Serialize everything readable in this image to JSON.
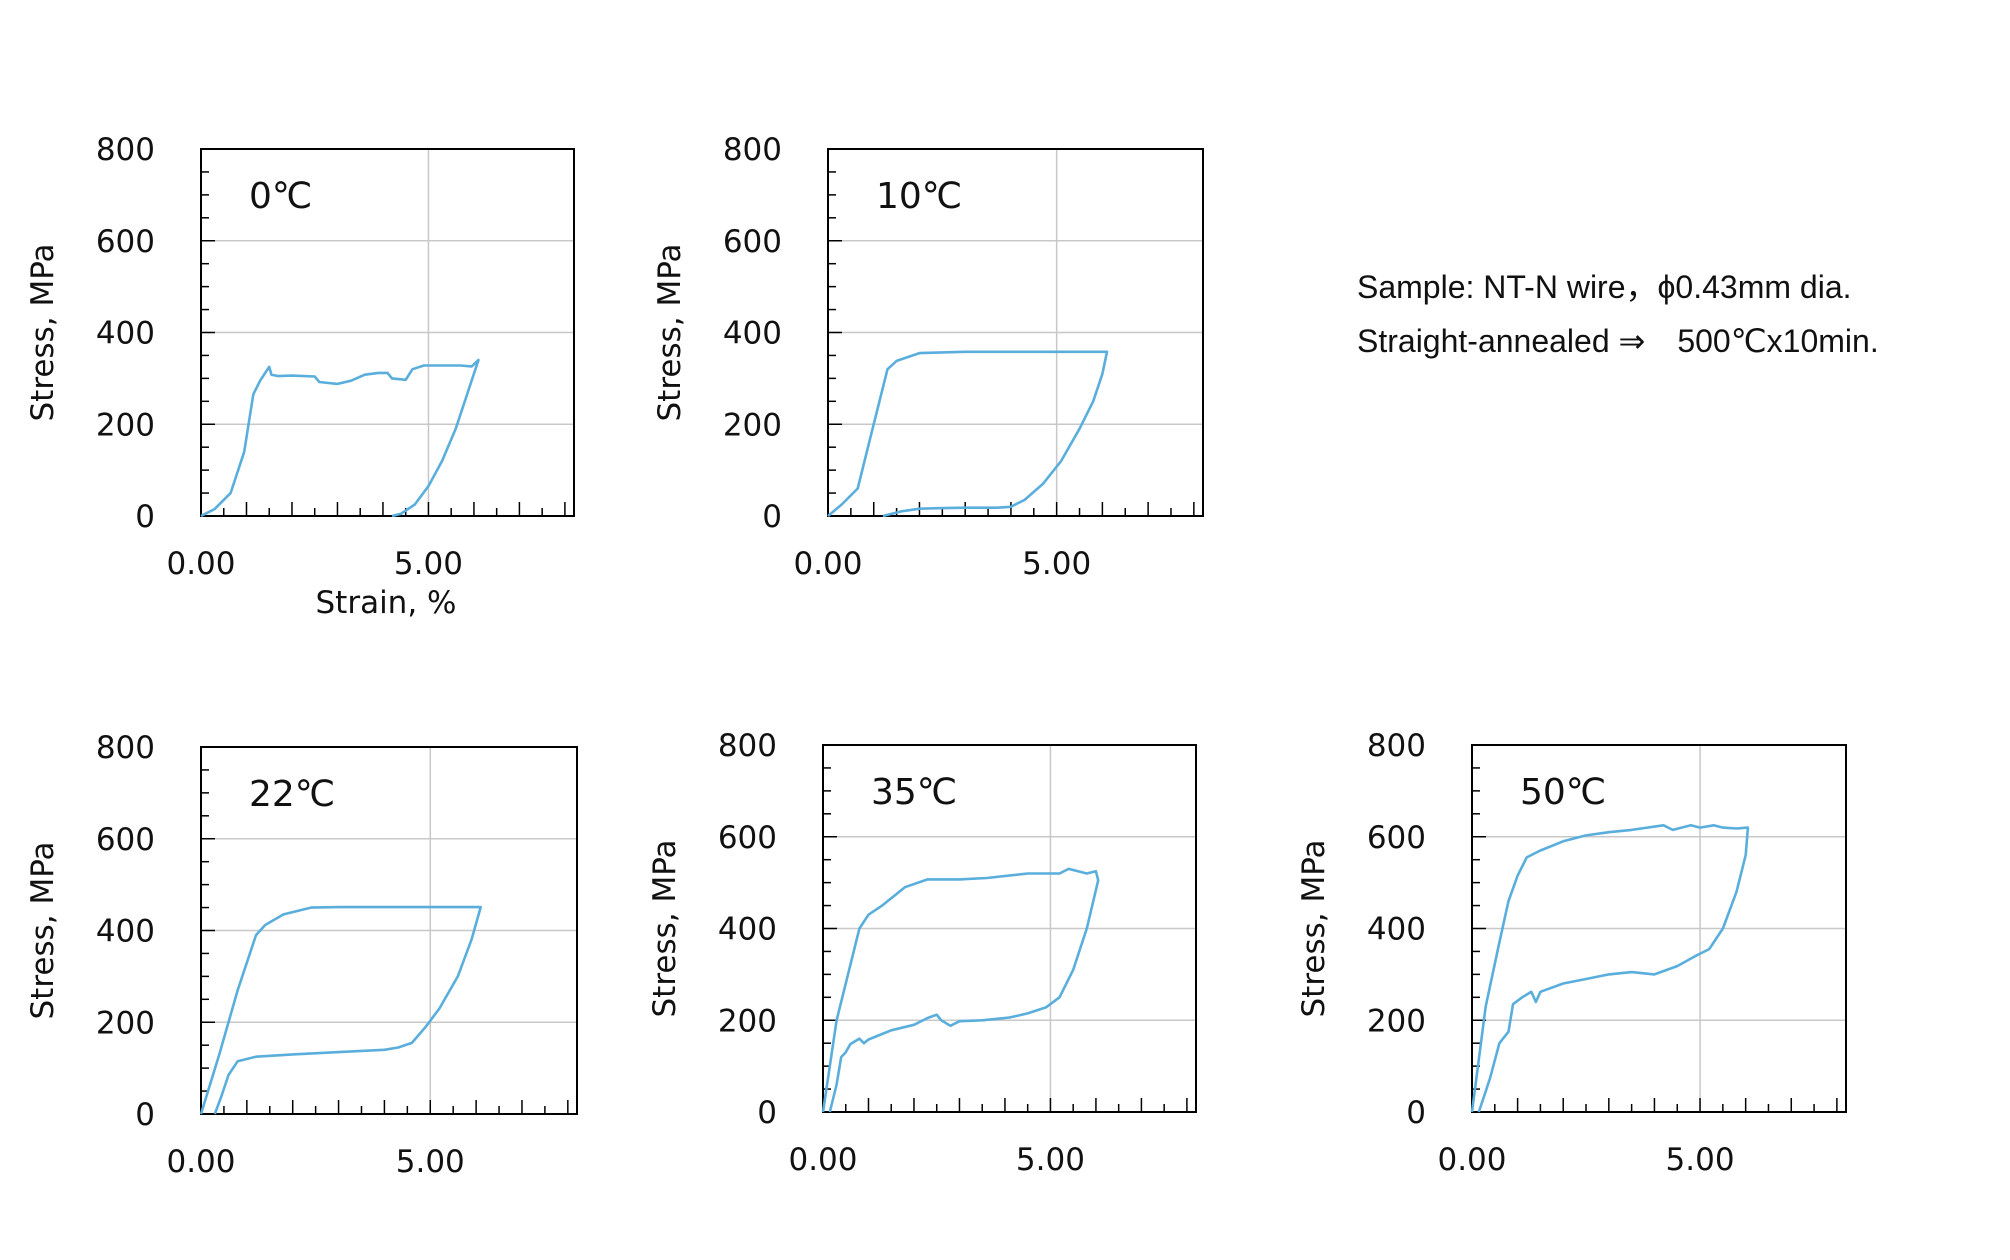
{
  "note": {
    "line1": "Sample: NT-N wire，ϕ0.43mm dia.",
    "line2": "Straight-annealed ⇒　500℃x10min."
  },
  "colors": {
    "curve": "#5aaedc",
    "frame": "#000000",
    "grid": "#c8c8c8"
  },
  "chart_data": [
    {
      "type": "line",
      "title": "0℃",
      "xlabel": "Strain, %",
      "ylabel": "Stress, MPa",
      "xlim": [
        0,
        8.2
      ],
      "ylim": [
        0,
        800
      ],
      "xticks": [
        "0.00",
        "5.00"
      ],
      "yticks": [
        "0",
        "200",
        "400",
        "600",
        "800"
      ],
      "grid": true,
      "series": [
        {
          "x": [
            0,
            0.3,
            0.65,
            0.95,
            1.15,
            1.3,
            1.5,
            1.55,
            1.7,
            2.0,
            2.5,
            2.6,
            2.8,
            3.0,
            3.3,
            3.6,
            3.9,
            4.1,
            4.2,
            4.5,
            4.65,
            4.9,
            5.2,
            5.7,
            5.95,
            6.1,
            6.0,
            5.8,
            5.6,
            5.3,
            5.0,
            4.7,
            4.4,
            4.2
          ],
          "y": [
            0,
            15,
            50,
            140,
            265,
            295,
            325,
            308,
            305,
            306,
            304,
            292,
            290,
            288,
            295,
            308,
            312,
            312,
            300,
            297,
            320,
            328,
            328,
            328,
            326,
            340,
            310,
            250,
            190,
            120,
            65,
            25,
            5,
            0
          ]
        }
      ]
    },
    {
      "type": "line",
      "title": "10℃",
      "xlabel": "",
      "ylabel": "Stress, MPa",
      "xlim": [
        0,
        8.2
      ],
      "ylim": [
        0,
        800
      ],
      "xticks": [
        "0.00",
        "5.00"
      ],
      "yticks": [
        "0",
        "200",
        "400",
        "600",
        "800"
      ],
      "grid": true,
      "series": [
        {
          "x": [
            0,
            0.3,
            0.65,
            0.95,
            1.2,
            1.3,
            1.5,
            2.0,
            3.0,
            4.0,
            5.0,
            5.9,
            6.1,
            6.0,
            5.8,
            5.5,
            5.1,
            4.7,
            4.3,
            4.0,
            3.7,
            3.0,
            2.4,
            2.0,
            1.6,
            1.2
          ],
          "y": [
            0,
            25,
            60,
            180,
            280,
            320,
            338,
            355,
            358,
            358,
            358,
            358,
            358,
            310,
            250,
            190,
            120,
            70,
            35,
            20,
            18,
            18,
            17,
            16,
            10,
            0
          ]
        }
      ]
    },
    {
      "type": "line",
      "title": "22℃",
      "xlabel": "",
      "ylabel": "Stress, MPa",
      "xlim": [
        0,
        8.2
      ],
      "ylim": [
        0,
        800
      ],
      "xticks": [
        "0.00",
        "5.00"
      ],
      "yticks": [
        "0",
        "200",
        "400",
        "600",
        "800"
      ],
      "grid": true,
      "series": [
        {
          "x": [
            0,
            0.4,
            0.8,
            1.2,
            1.4,
            1.8,
            2.4,
            3.0,
            4.0,
            5.0,
            5.9,
            6.1,
            5.9,
            5.6,
            5.2,
            4.9,
            4.6,
            4.3,
            4.0,
            3.0,
            2.0,
            1.2,
            0.8,
            0.6,
            0.45,
            0.3
          ],
          "y": [
            0,
            130,
            270,
            390,
            412,
            435,
            450,
            451,
            451,
            451,
            451,
            451,
            380,
            300,
            230,
            190,
            155,
            145,
            140,
            135,
            130,
            125,
            115,
            85,
            40,
            0
          ]
        }
      ]
    },
    {
      "type": "line",
      "title": "35℃",
      "xlabel": "",
      "ylabel": "Stress, MPa",
      "xlim": [
        0,
        8.2
      ],
      "ylim": [
        0,
        800
      ],
      "xticks": [
        "0.00",
        "5.00"
      ],
      "yticks": [
        "0",
        "200",
        "400",
        "600",
        "800"
      ],
      "grid": true,
      "series": [
        {
          "x": [
            0,
            0.3,
            0.55,
            0.8,
            1.0,
            1.3,
            1.8,
            2.3,
            3.0,
            3.6,
            4.5,
            5.2,
            5.4,
            5.8,
            6.0,
            6.05,
            5.8,
            5.5,
            5.2,
            4.9,
            4.5,
            4.1,
            3.5,
            3.0,
            2.8,
            2.6,
            2.5,
            2.3,
            2.0,
            1.5,
            1.0,
            0.9,
            0.8,
            0.6,
            0.5,
            0.4,
            0.3,
            0.15
          ],
          "y": [
            0,
            200,
            300,
            400,
            430,
            450,
            490,
            507,
            507,
            510,
            520,
            520,
            530,
            520,
            525,
            505,
            400,
            310,
            250,
            228,
            215,
            206,
            200,
            198,
            188,
            200,
            212,
            205,
            190,
            178,
            158,
            150,
            160,
            148,
            130,
            120,
            60,
            0
          ]
        }
      ]
    },
    {
      "type": "line",
      "title": "50℃",
      "xlabel": "",
      "ylabel": "Stress, MPa",
      "xlim": [
        0,
        8.2
      ],
      "ylim": [
        0,
        800
      ],
      "xticks": [
        "0.00",
        "5.00"
      ],
      "yticks": [
        "0",
        "200",
        "400",
        "600",
        "800"
      ],
      "grid": true,
      "series": [
        {
          "x": [
            0,
            0.3,
            0.6,
            0.8,
            1.0,
            1.2,
            1.5,
            2.0,
            2.5,
            3.0,
            3.5,
            4.2,
            4.4,
            4.8,
            5.0,
            5.3,
            5.5,
            5.8,
            6.05,
            6.0,
            5.8,
            5.5,
            5.2,
            4.9,
            4.5,
            4.0,
            3.5,
            3.0,
            2.5,
            2.0,
            1.5,
            1.4,
            1.3,
            1.1,
            0.9,
            0.8,
            0.6,
            0.4,
            0.3,
            0.15
          ],
          "y": [
            0,
            230,
            370,
            460,
            515,
            555,
            570,
            590,
            603,
            610,
            615,
            625,
            615,
            625,
            620,
            625,
            620,
            618,
            620,
            560,
            480,
            400,
            355,
            340,
            318,
            300,
            305,
            300,
            290,
            280,
            262,
            240,
            262,
            250,
            235,
            175,
            150,
            75,
            45,
            0
          ]
        }
      ]
    }
  ]
}
